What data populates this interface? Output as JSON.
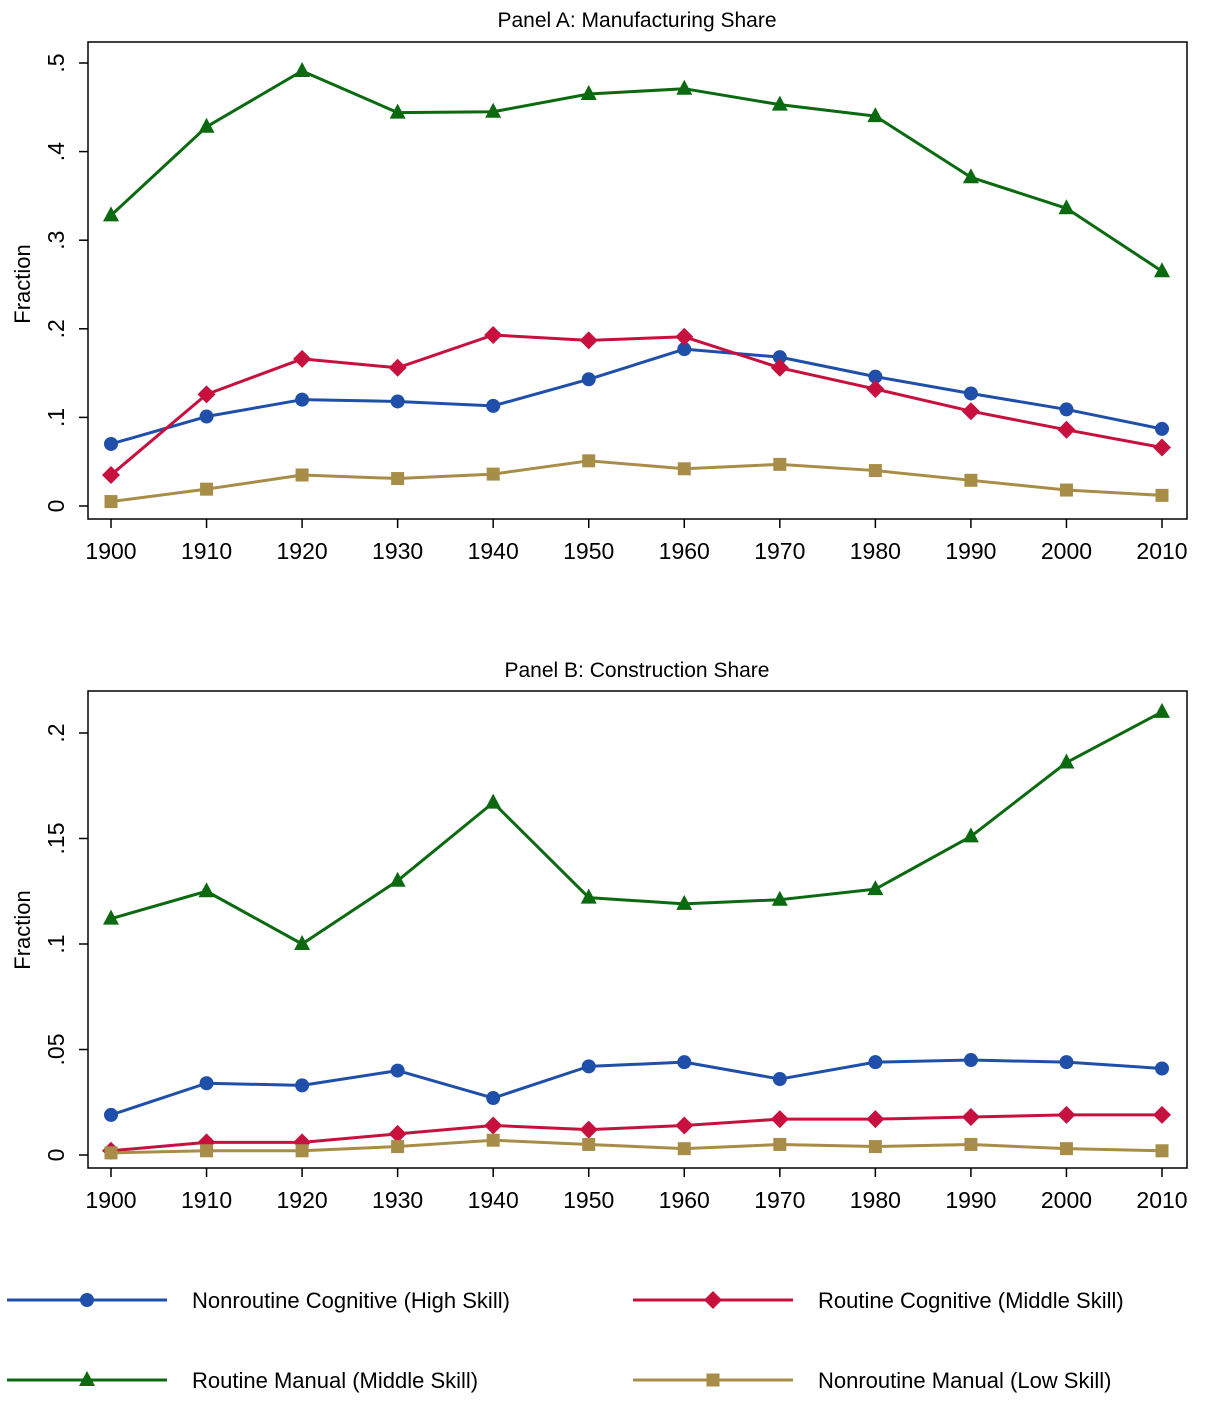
{
  "chart_data": [
    {
      "type": "line",
      "title": "Panel A: Manufacturing Share",
      "xlabel": "",
      "ylabel": "Fraction",
      "x": [
        1900,
        1910,
        1920,
        1930,
        1940,
        1950,
        1960,
        1970,
        1980,
        1990,
        2000,
        2010
      ],
      "ylim": [
        0,
        0.5
      ],
      "yticks": [
        0,
        0.1,
        0.2,
        0.3,
        0.4,
        0.5
      ],
      "ytick_labels": [
        "0",
        ".1",
        ".2",
        ".3",
        ".4",
        ".5"
      ],
      "grid": false,
      "series": [
        {
          "name": "Nonroutine Cognitive (High Skill)",
          "color": "#1f4fa8",
          "marker": "circle",
          "values": [
            0.07,
            0.101,
            0.12,
            0.118,
            0.113,
            0.143,
            0.177,
            0.168,
            0.146,
            0.127,
            0.109,
            0.087
          ]
        },
        {
          "name": "Routine Cognitive (Middle Skill)",
          "color": "#c8103f",
          "marker": "diamond",
          "values": [
            0.035,
            0.126,
            0.166,
            0.156,
            0.193,
            0.187,
            0.191,
            0.156,
            0.132,
            0.107,
            0.086,
            0.066
          ]
        },
        {
          "name": "Routine Manual (Middle Skill)",
          "color": "#0b6a10",
          "marker": "triangle",
          "values": [
            0.328,
            0.428,
            0.491,
            0.444,
            0.445,
            0.465,
            0.471,
            0.453,
            0.44,
            0.371,
            0.336,
            0.265
          ]
        },
        {
          "name": "Nonroutine Manual (Low Skill)",
          "color": "#a88d48",
          "marker": "square",
          "values": [
            0.005,
            0.019,
            0.035,
            0.031,
            0.036,
            0.051,
            0.042,
            0.047,
            0.04,
            0.029,
            0.018,
            0.012
          ]
        }
      ]
    },
    {
      "type": "line",
      "title": "Panel B: Construction Share",
      "xlabel": "",
      "ylabel": "Fraction",
      "x": [
        1900,
        1910,
        1920,
        1930,
        1940,
        1950,
        1960,
        1970,
        1980,
        1990,
        2000,
        2010
      ],
      "ylim": [
        0,
        0.21
      ],
      "yticks": [
        0,
        0.05,
        0.1,
        0.15,
        0.2
      ],
      "ytick_labels": [
        "0",
        ".05",
        ".1",
        ".15",
        ".2"
      ],
      "grid": false,
      "series": [
        {
          "name": "Nonroutine Cognitive (High Skill)",
          "color": "#1f4fa8",
          "marker": "circle",
          "values": [
            0.019,
            0.034,
            0.033,
            0.04,
            0.027,
            0.042,
            0.044,
            0.036,
            0.044,
            0.045,
            0.044,
            0.041
          ]
        },
        {
          "name": "Routine Cognitive (Middle Skill)",
          "color": "#c8103f",
          "marker": "diamond",
          "values": [
            0.002,
            0.006,
            0.006,
            0.01,
            0.014,
            0.012,
            0.014,
            0.017,
            0.017,
            0.018,
            0.019,
            0.019
          ]
        },
        {
          "name": "Routine Manual (Middle Skill)",
          "color": "#0b6a10",
          "marker": "triangle",
          "values": [
            0.112,
            0.125,
            0.1,
            0.13,
            0.167,
            0.122,
            0.119,
            0.121,
            0.126,
            0.151,
            0.186,
            0.21
          ]
        },
        {
          "name": "Nonroutine Manual (Low Skill)",
          "color": "#a88d48",
          "marker": "square",
          "values": [
            0.001,
            0.002,
            0.002,
            0.004,
            0.007,
            0.005,
            0.003,
            0.005,
            0.004,
            0.005,
            0.003,
            0.002
          ]
        }
      ]
    }
  ],
  "legend": {
    "placement": "bottom",
    "items": [
      {
        "label": "Nonroutine Cognitive (High Skill)",
        "color": "#1f4fa8",
        "marker": "circle"
      },
      {
        "label": "Routine Cognitive (Middle Skill)",
        "color": "#c8103f",
        "marker": "diamond"
      },
      {
        "label": "Routine Manual (Middle Skill)",
        "color": "#0b6a10",
        "marker": "triangle"
      },
      {
        "label": "Nonroutine Manual (Low Skill)",
        "color": "#a88d48",
        "marker": "square"
      }
    ]
  }
}
